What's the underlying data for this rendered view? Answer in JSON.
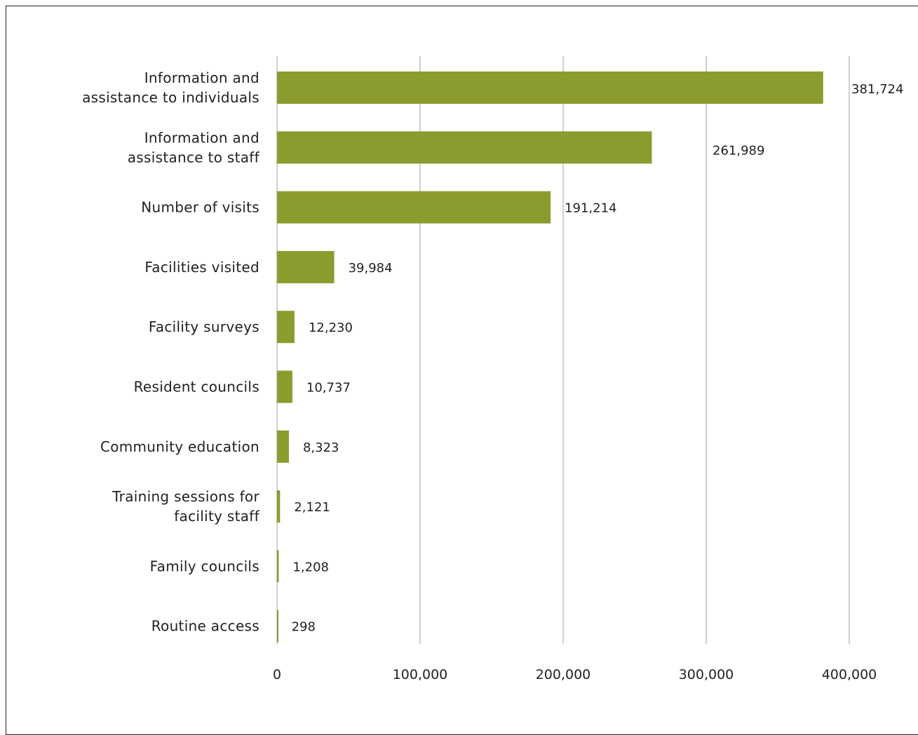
{
  "chart_data": {
    "type": "bar",
    "orientation": "horizontal",
    "categories": [
      [
        "Information and",
        "assistance to individuals"
      ],
      [
        "Information and",
        "assistance to staff"
      ],
      [
        "Number of visits"
      ],
      [
        "Facilities visited"
      ],
      [
        "Facility surveys"
      ],
      [
        "Resident councils"
      ],
      [
        "Community education"
      ],
      [
        "Training sessions for",
        "facility staff"
      ],
      [
        "Family councils"
      ],
      [
        "Routine access"
      ]
    ],
    "values": [
      381724,
      261989,
      191214,
      39984,
      12230,
      10737,
      8323,
      2121,
      1208,
      298
    ],
    "value_labels": [
      "381,724",
      "261,989",
      "191,214",
      "39,984",
      "12,230",
      "10,737",
      "8,323",
      "2,121",
      "1,208",
      "298"
    ],
    "xlim": [
      0,
      400000
    ],
    "x_ticks": [
      0,
      100000,
      200000,
      300000,
      400000
    ],
    "x_tick_labels": [
      "0",
      "100,000",
      "200,000",
      "300,000",
      "400,000"
    ],
    "title": "",
    "xlabel": "",
    "ylabel": "",
    "grid": true,
    "legend": "none",
    "bar_color": "#8c9b2e"
  }
}
